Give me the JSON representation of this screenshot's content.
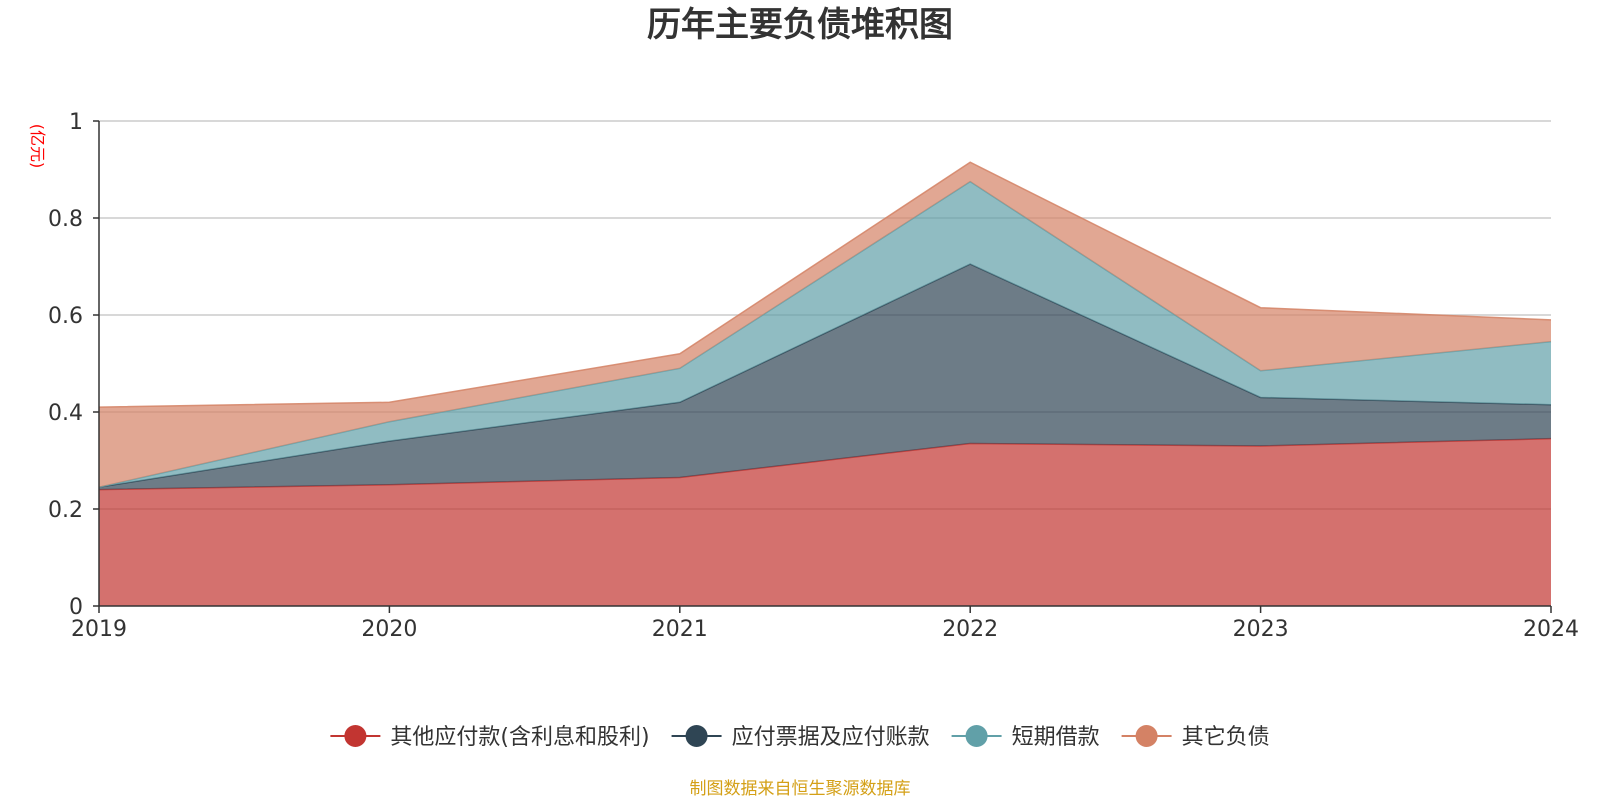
{
  "chart_data": {
    "type": "area",
    "stacked": true,
    "title": "历年主要负债堆积图",
    "ylabel": "(亿元)",
    "xlabel": "",
    "categories": [
      "2019",
      "2020",
      "2021",
      "2022",
      "2023",
      "2024"
    ],
    "ylim": [
      0,
      1
    ],
    "yticks": [
      "0",
      "0.2",
      "0.4",
      "0.6",
      "0.8",
      "1"
    ],
    "grid": true,
    "legend_position": "bottom",
    "series": [
      {
        "name": "其他应付款(含利息和股利)",
        "color": "#c23531",
        "values": [
          0.24,
          0.25,
          0.265,
          0.335,
          0.33,
          0.345
        ]
      },
      {
        "name": "应付票据及应付账款",
        "color": "#2f4554",
        "values": [
          0.005,
          0.09,
          0.155,
          0.37,
          0.1,
          0.07
        ]
      },
      {
        "name": "短期借款",
        "color": "#61a0a8",
        "values": [
          0.0,
          0.04,
          0.07,
          0.17,
          0.055,
          0.13
        ]
      },
      {
        "name": "其它负债",
        "color": "#d48265",
        "values": [
          0.165,
          0.04,
          0.03,
          0.04,
          0.13,
          0.045
        ]
      }
    ],
    "ylabel_color": "#ff0000"
  },
  "source": {
    "text": "制图数据来自恒生聚源数据库",
    "color": "#d4a017"
  }
}
